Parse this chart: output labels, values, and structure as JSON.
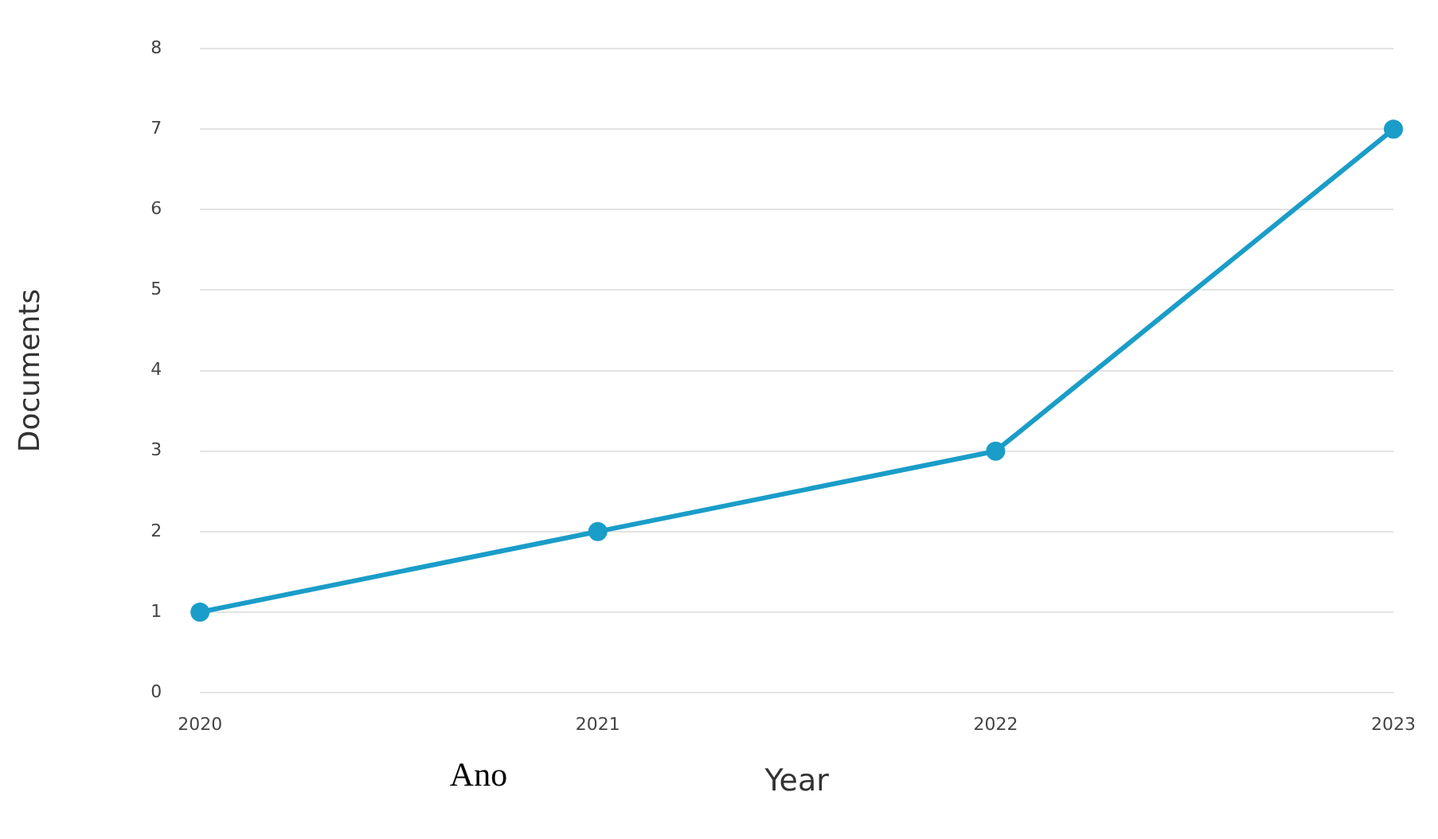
{
  "chart_data": {
    "type": "line",
    "xlabel": "Year",
    "ylabel": "Documents",
    "categories": [
      "2020",
      "2021",
      "2022",
      "2023"
    ],
    "series": [
      {
        "color": "#1a9dc8",
        "values": [
          1,
          2,
          3,
          7
        ]
      }
    ],
    "ylim": [
      0,
      8
    ],
    "yticks": [
      0,
      1,
      2,
      3,
      4,
      5,
      6,
      7,
      8
    ],
    "grid": "y",
    "legend": false,
    "marker": "circle",
    "line_style": "solid",
    "annotations": [
      "Ano"
    ]
  }
}
